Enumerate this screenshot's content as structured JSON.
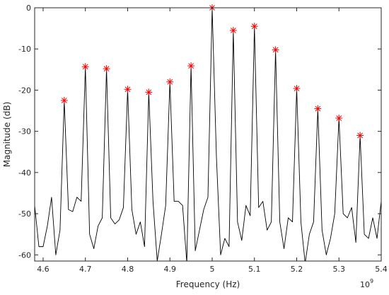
{
  "chart_data": {
    "type": "line",
    "title": "",
    "xlabel": "Frequency (Hz)",
    "ylabel": "Magnitude (dB)",
    "x_exponent_base": "10",
    "x_exponent_power": "9",
    "xlim": [
      4.58,
      5.4
    ],
    "ylim": [
      -61.5,
      0
    ],
    "x_ticks": [
      4.6,
      4.7,
      4.8,
      4.9,
      5.0,
      5.1,
      5.2,
      5.3,
      5.4
    ],
    "x_tick_labels": [
      "4.6",
      "4.7",
      "4.8",
      "4.9",
      "5",
      "5.1",
      "5.2",
      "5.3",
      "5.4"
    ],
    "y_ticks": [
      -60,
      -50,
      -40,
      -30,
      -20,
      -10,
      0
    ],
    "y_tick_labels": [
      "-60",
      "-50",
      "-40",
      "-30",
      "-20",
      "-10",
      "0"
    ],
    "grid": false,
    "line_color": "#000000",
    "marker_color": "#ff0000",
    "series": [
      {
        "values": [
          [
            4.58,
            -48
          ],
          [
            4.59,
            -58
          ],
          [
            4.6,
            -58
          ],
          [
            4.61,
            -53
          ],
          [
            4.62,
            -46
          ],
          [
            4.63,
            -60
          ],
          [
            4.64,
            -54
          ],
          [
            4.65,
            -22.5
          ],
          [
            4.66,
            -49
          ],
          [
            4.67,
            -49.5
          ],
          [
            4.68,
            -46
          ],
          [
            4.69,
            -47
          ],
          [
            4.7,
            -14.3
          ],
          [
            4.71,
            -55
          ],
          [
            4.72,
            -58.5
          ],
          [
            4.73,
            -53
          ],
          [
            4.74,
            -51
          ],
          [
            4.75,
            -14.8
          ],
          [
            4.76,
            -51
          ],
          [
            4.77,
            -52.5
          ],
          [
            4.78,
            -51.5
          ],
          [
            4.79,
            -48.5
          ],
          [
            4.8,
            -19.8
          ],
          [
            4.81,
            -49
          ],
          [
            4.82,
            -55
          ],
          [
            4.83,
            -52
          ],
          [
            4.84,
            -58
          ],
          [
            4.85,
            -20.5
          ],
          [
            4.86,
            -47
          ],
          [
            4.87,
            -61.5
          ],
          [
            4.88,
            -55
          ],
          [
            4.89,
            -48
          ],
          [
            4.9,
            -18
          ],
          [
            4.91,
            -47
          ],
          [
            4.92,
            -47
          ],
          [
            4.93,
            -48
          ],
          [
            4.94,
            -62
          ],
          [
            4.95,
            -14.1
          ],
          [
            4.96,
            -59
          ],
          [
            4.97,
            -54
          ],
          [
            4.98,
            -49
          ],
          [
            4.99,
            -46
          ],
          [
            5.0,
            0
          ],
          [
            5.01,
            -36
          ],
          [
            5.02,
            -60
          ],
          [
            5.03,
            -56
          ],
          [
            5.04,
            -58
          ],
          [
            5.05,
            -5.5
          ],
          [
            5.06,
            -52
          ],
          [
            5.07,
            -56.5
          ],
          [
            5.08,
            -48
          ],
          [
            5.09,
            -50.5
          ],
          [
            5.1,
            -4.5
          ],
          [
            5.11,
            -48.5
          ],
          [
            5.12,
            -47
          ],
          [
            5.13,
            -54
          ],
          [
            5.14,
            -52
          ],
          [
            5.15,
            -10.2
          ],
          [
            5.16,
            -52
          ],
          [
            5.17,
            -58.5
          ],
          [
            5.18,
            -51
          ],
          [
            5.19,
            -52
          ],
          [
            5.2,
            -19.6
          ],
          [
            5.21,
            -52
          ],
          [
            5.22,
            -62
          ],
          [
            5.23,
            -55
          ],
          [
            5.24,
            -52
          ],
          [
            5.25,
            -24.5
          ],
          [
            5.26,
            -54
          ],
          [
            5.27,
            -60
          ],
          [
            5.28,
            -56
          ],
          [
            5.29,
            -50
          ],
          [
            5.3,
            -26.8
          ],
          [
            5.31,
            -50
          ],
          [
            5.32,
            -51
          ],
          [
            5.33,
            -48.5
          ],
          [
            5.34,
            -57
          ],
          [
            5.35,
            -31
          ],
          [
            5.36,
            -55
          ],
          [
            5.37,
            -56
          ],
          [
            5.38,
            -51
          ],
          [
            5.39,
            -56
          ],
          [
            5.4,
            -47
          ]
        ]
      }
    ],
    "peaks": [
      [
        4.65,
        -22.5
      ],
      [
        4.7,
        -14.3
      ],
      [
        4.75,
        -14.8
      ],
      [
        4.8,
        -19.8
      ],
      [
        4.85,
        -20.5
      ],
      [
        4.9,
        -18
      ],
      [
        4.95,
        -14.1
      ],
      [
        5.0,
        0
      ],
      [
        5.05,
        -5.5
      ],
      [
        5.1,
        -4.5
      ],
      [
        5.15,
        -10.2
      ],
      [
        5.2,
        -19.6
      ],
      [
        5.25,
        -24.5
      ],
      [
        5.3,
        -26.8
      ],
      [
        5.35,
        -31
      ]
    ]
  }
}
